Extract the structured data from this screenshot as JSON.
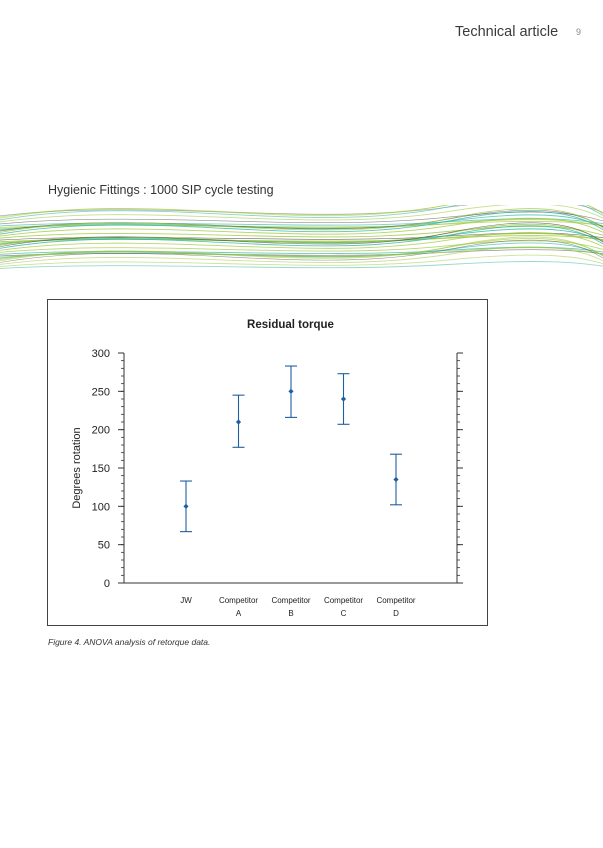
{
  "header": {
    "title": "Technical article",
    "page_number": "9"
  },
  "subtitle": "Hygienic Fittings : 1000 SIP cycle testing",
  "caption": "Figure 4. ANOVA analysis of retorque data.",
  "colors": {
    "series": "#1f5fa0",
    "banner_green": "#9ec83a",
    "banner_teal": "#2bb3a0"
  },
  "chart_data": {
    "type": "errorbar",
    "title": "Residual torque",
    "ylabel": "Degrees rotation",
    "xlabel": "",
    "ylim": [
      0,
      300
    ],
    "yticks": [
      0,
      50,
      100,
      150,
      200,
      250,
      300
    ],
    "categories": [
      [
        "JW"
      ],
      [
        "Competitor",
        "A"
      ],
      [
        "Competitor",
        "B"
      ],
      [
        "Competitor",
        "C"
      ],
      [
        "Competitor",
        "D"
      ]
    ],
    "series": [
      {
        "means": [
          100,
          210,
          250,
          240,
          135
        ],
        "lower": [
          67,
          177,
          216,
          207,
          102
        ],
        "upper": [
          133,
          245,
          283,
          273,
          168
        ]
      }
    ],
    "grid": false
  }
}
